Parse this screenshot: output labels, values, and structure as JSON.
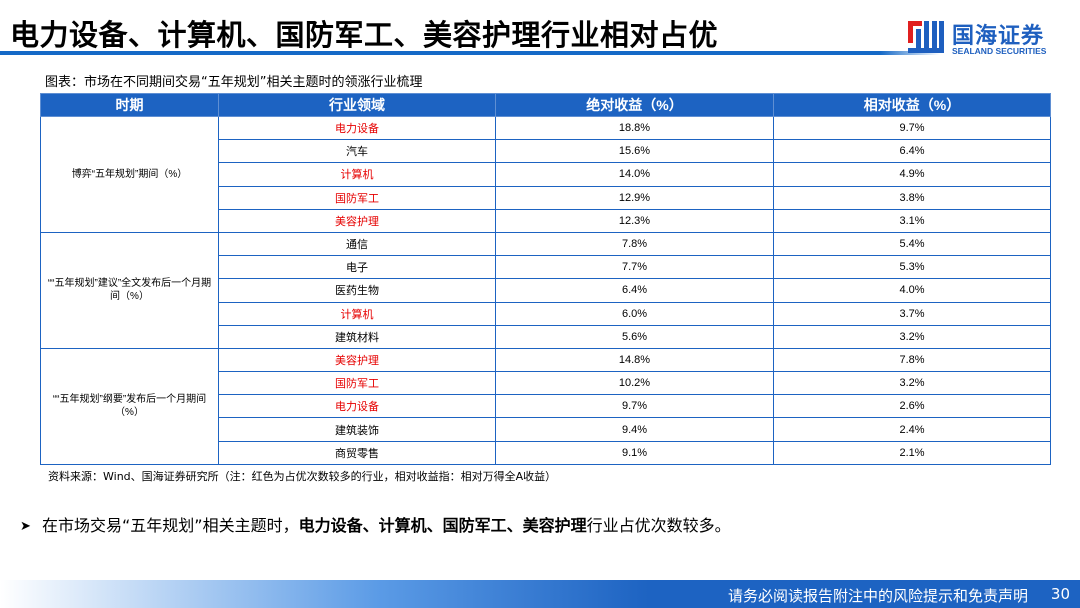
{
  "header": {
    "title": "电力设备、计算机、国防军工、美容护理行业相对占优",
    "logo_cn": "国海证券",
    "logo_en": "SEALAND SECURITIES",
    "accent_color": "#1569c7"
  },
  "caption": "图表：市场在不同期间交易“五年规划”相关主题时的领涨行业梳理",
  "table": {
    "columns": [
      "时期",
      "行业领域",
      "绝对收益（%）",
      "相对收益（%）"
    ],
    "header_bg": "#1d63c2",
    "highlight_color": "#e60000",
    "groups": [
      {
        "period": "博弈“五年规划”期间（%）",
        "rows": [
          {
            "industry": "电力设备",
            "abs": "18.8%",
            "rel": "9.7%",
            "highlight": true
          },
          {
            "industry": "汽车",
            "abs": "15.6%",
            "rel": "6.4%",
            "highlight": false
          },
          {
            "industry": "计算机",
            "abs": "14.0%",
            "rel": "4.9%",
            "highlight": true
          },
          {
            "industry": "国防军工",
            "abs": "12.9%",
            "rel": "3.8%",
            "highlight": true
          },
          {
            "industry": "美容护理",
            "abs": "12.3%",
            "rel": "3.1%",
            "highlight": true
          }
        ]
      },
      {
        "period": "““五年规划”建议”全文发布后一个月期间（%）",
        "rows": [
          {
            "industry": "通信",
            "abs": "7.8%",
            "rel": "5.4%",
            "highlight": false
          },
          {
            "industry": "电子",
            "abs": "7.7%",
            "rel": "5.3%",
            "highlight": false
          },
          {
            "industry": "医药生物",
            "abs": "6.4%",
            "rel": "4.0%",
            "highlight": false
          },
          {
            "industry": "计算机",
            "abs": "6.0%",
            "rel": "3.7%",
            "highlight": true
          },
          {
            "industry": "建筑材料",
            "abs": "5.6%",
            "rel": "3.2%",
            "highlight": false
          }
        ]
      },
      {
        "period": "““五年规划”纲要”发布后一个月期间（%）",
        "rows": [
          {
            "industry": "美容护理",
            "abs": "14.8%",
            "rel": "7.8%",
            "highlight": true
          },
          {
            "industry": "国防军工",
            "abs": "10.2%",
            "rel": "3.2%",
            "highlight": true
          },
          {
            "industry": "电力设备",
            "abs": "9.7%",
            "rel": "2.6%",
            "highlight": true
          },
          {
            "industry": "建筑装饰",
            "abs": "9.4%",
            "rel": "2.4%",
            "highlight": false
          },
          {
            "industry": "商贸零售",
            "abs": "9.1%",
            "rel": "2.1%",
            "highlight": false
          }
        ]
      }
    ]
  },
  "source": "资料来源：Wind、国海证券研究所（注：红色为占优次数较多的行业，相对收益指：相对万得全A收益）",
  "bullet": {
    "icon": "arrow-bullet-icon",
    "prefix": "在市场交易“五年规划”相关主题时，",
    "bold": "电力设备、计算机、国防军工、美容护理",
    "suffix": "行业占优次数较多。"
  },
  "footer": {
    "disclaimer": "请务必阅读报告附注中的风险提示和免责声明",
    "page_number": "30"
  }
}
